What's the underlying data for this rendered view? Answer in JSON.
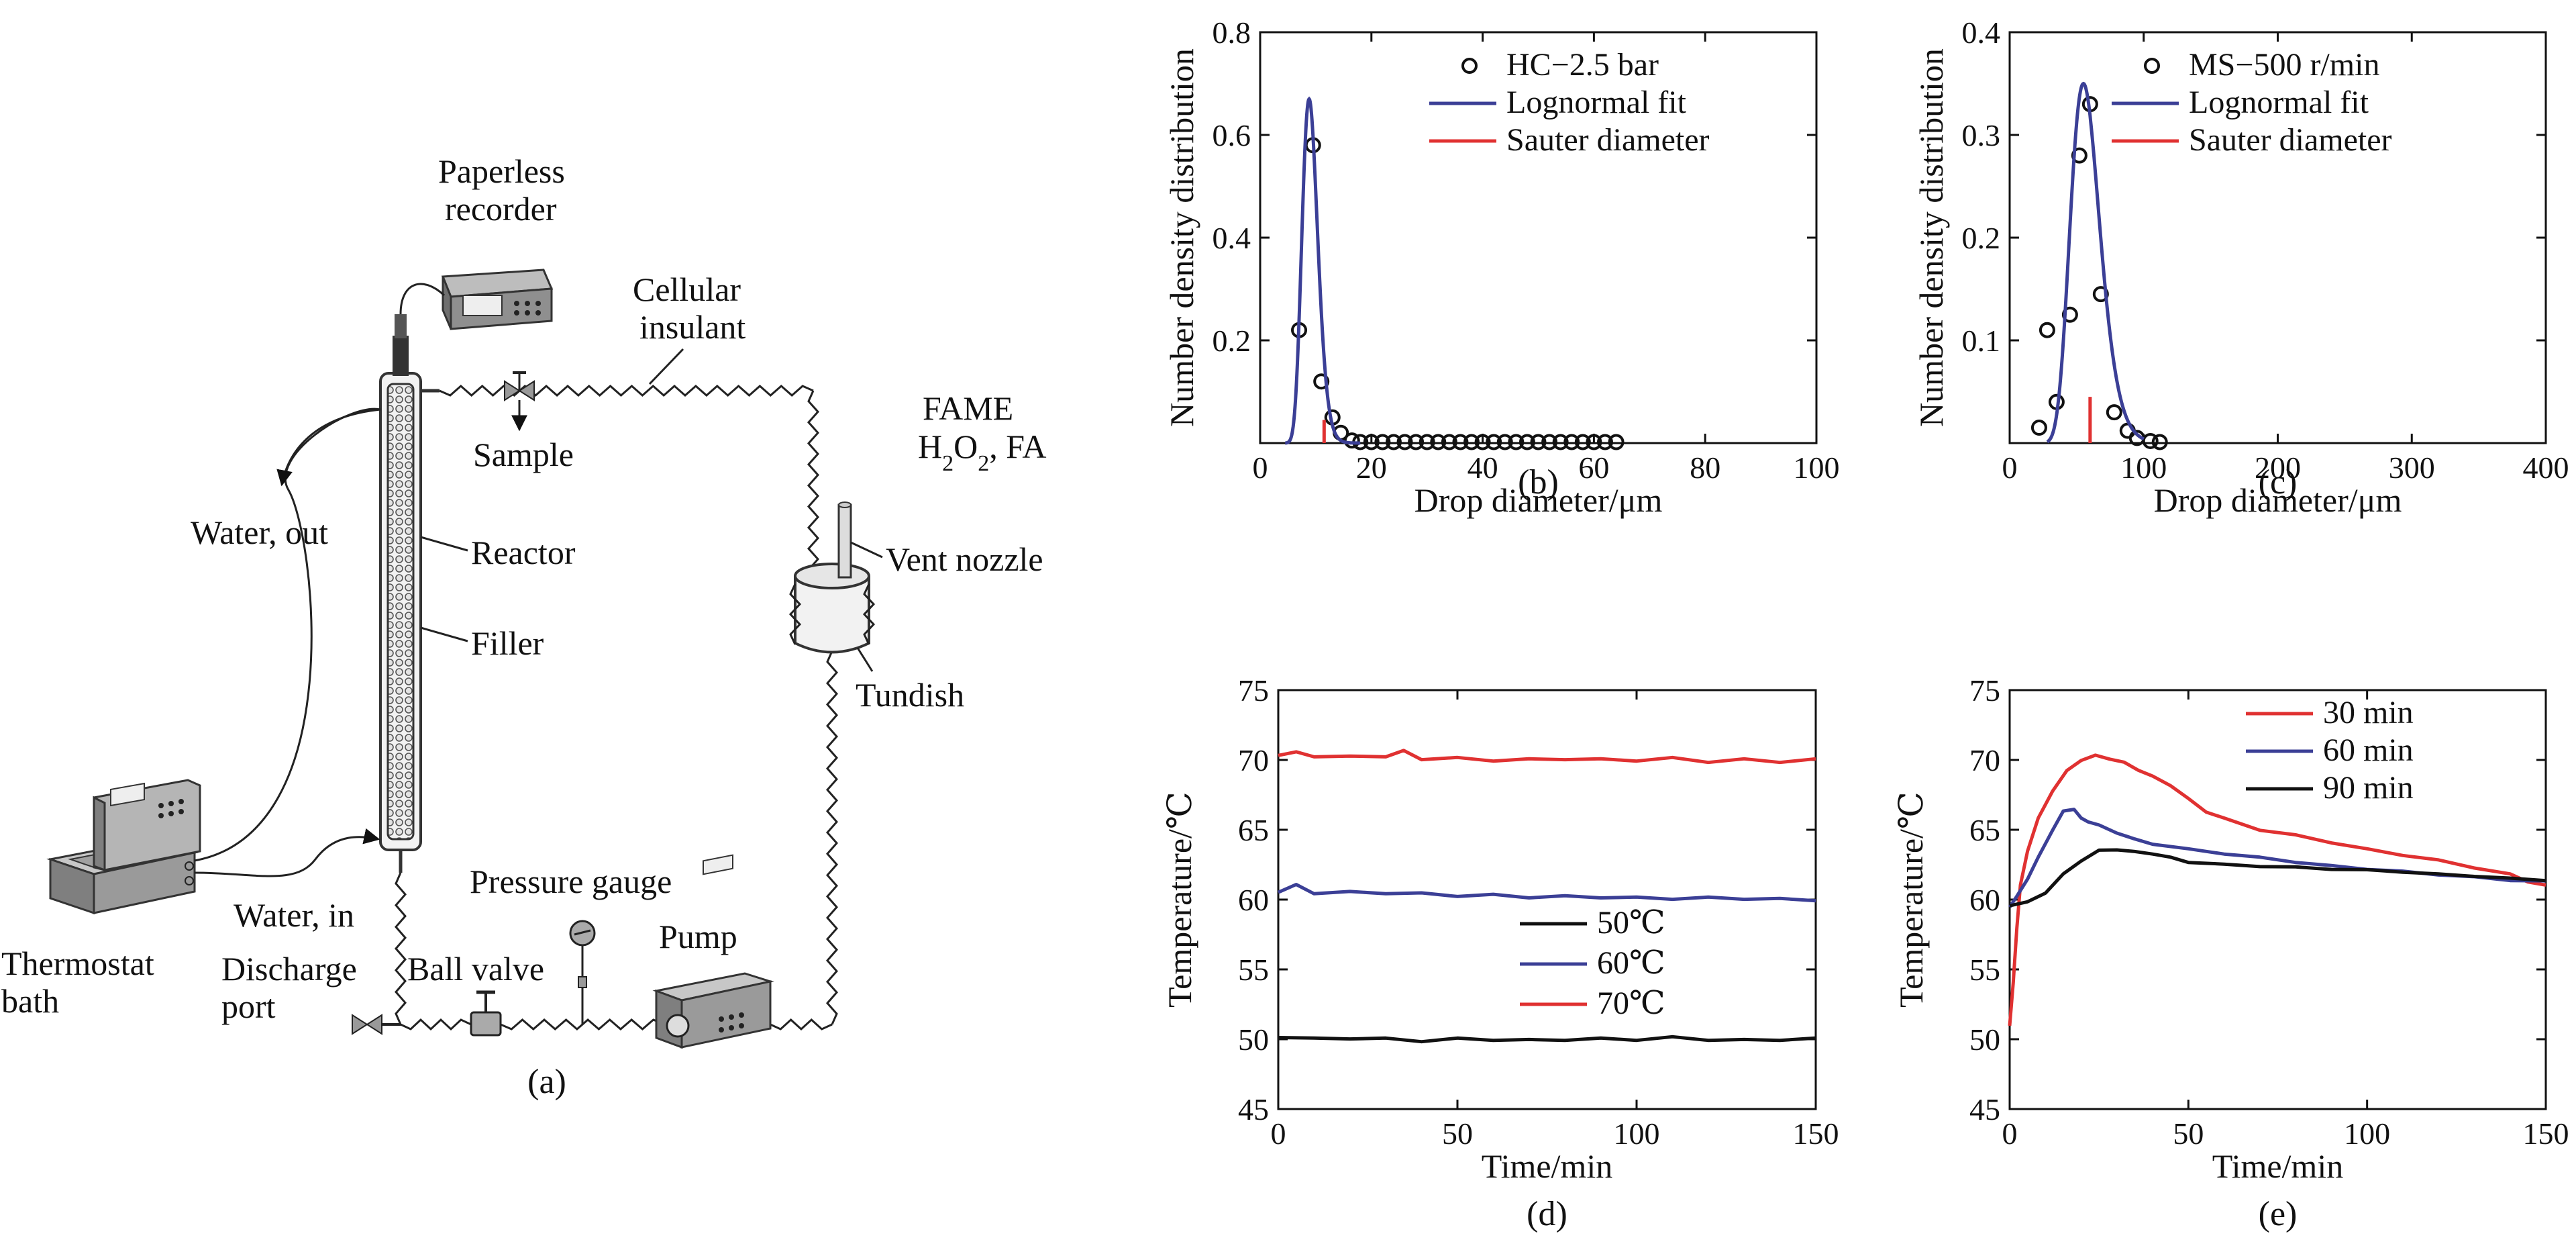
{
  "colors": {
    "red": "#e03131",
    "blue": "#3b3f96",
    "black": "#111111",
    "device": "#8a8a8a"
  },
  "diagram": {
    "caption": "(a)",
    "labels": {
      "paperless": "Paperless",
      "recorder": "recorder",
      "cellular": "Cellular",
      "insulant": "insulant",
      "sample": "Sample",
      "fame": "FAME",
      "h2o2_h": "H",
      "h2o2_2a": "2",
      "h2o2_o": "O",
      "h2o2_2b": "2",
      "h2o2_fa": ", FA",
      "water_out": "Water, out",
      "reactor": "Reactor",
      "vent_nozzle": "Vent nozzle",
      "filler": "Filler",
      "tundish": "Tundish",
      "pressure_gauge": "Pressure gauge",
      "water_in": "Water, in",
      "pump": "Pump",
      "thermostat": "Thermostat",
      "bath": "bath",
      "discharge": "Discharge",
      "port": "port",
      "ball_valve": "Ball valve"
    }
  },
  "chart_data": [
    {
      "id": "b",
      "type": "scatter",
      "caption": "(b)",
      "xlabel": "Drop diameter/μm",
      "ylabel": "Number density distribution",
      "xlim": [
        0,
        100
      ],
      "ylim": [
        0,
        0.8
      ],
      "xticks": [
        0,
        20,
        40,
        60,
        80,
        100
      ],
      "yticks": [
        0.2,
        0.4,
        0.6,
        0.8
      ],
      "legend_position": "top-right",
      "series": [
        {
          "name": "HC−2.5 bar",
          "kind": "points",
          "x": [
            7,
            9.5,
            11,
            13,
            14.5,
            16.5,
            18,
            20,
            22,
            24,
            26,
            28,
            30,
            32,
            34,
            36,
            38,
            40,
            42,
            44,
            46,
            48,
            50,
            52,
            54,
            56,
            58,
            60,
            62,
            64
          ],
          "y": [
            0.22,
            0.58,
            0.12,
            0.05,
            0.02,
            0.005,
            0.002,
            0.002,
            0.002,
            0.002,
            0.002,
            0.002,
            0.002,
            0.002,
            0.002,
            0.002,
            0.002,
            0.002,
            0.002,
            0.002,
            0.002,
            0.002,
            0.002,
            0.002,
            0.002,
            0.002,
            0.002,
            0.002,
            0.002,
            0.002
          ]
        },
        {
          "name": "Lognormal fit",
          "kind": "lognormal",
          "peak_x": 8.8,
          "peak_y": 0.67,
          "sigma": 0.16,
          "x_range": [
            4.5,
            18
          ]
        },
        {
          "name": "Sauter diameter",
          "kind": "vline",
          "x": 11.5,
          "y": 0.045
        }
      ]
    },
    {
      "id": "c",
      "type": "scatter",
      "caption": "(c)",
      "xlabel": "Drop diameter/μm",
      "ylabel": "Number density distribution",
      "xlim": [
        0,
        400
      ],
      "ylim": [
        0,
        0.4
      ],
      "xticks": [
        0,
        100,
        200,
        300,
        400
      ],
      "yticks": [
        0.1,
        0.2,
        0.3,
        0.4
      ],
      "legend_position": "top-right",
      "series": [
        {
          "name": "MS−500 r/min",
          "kind": "points",
          "x": [
            22,
            28,
            35,
            45,
            52,
            60,
            68,
            78,
            88,
            95,
            105,
            112
          ],
          "y": [
            0.015,
            0.11,
            0.04,
            0.125,
            0.28,
            0.33,
            0.145,
            0.03,
            0.012,
            0.005,
            0.002,
            0.001
          ]
        },
        {
          "name": "Lognormal fit",
          "kind": "lognormal",
          "peak_x": 55,
          "peak_y": 0.35,
          "sigma": 0.2,
          "x_range": [
            28,
            100
          ]
        },
        {
          "name": "Sauter diameter",
          "kind": "vline",
          "x": 60,
          "y": 0.045
        }
      ]
    },
    {
      "id": "d",
      "type": "line",
      "caption": "(d)",
      "xlabel": "Time/min",
      "ylabel": "Temperature/℃",
      "xlim": [
        0,
        150
      ],
      "ylim": [
        45,
        75
      ],
      "xticks": [
        0,
        50,
        100,
        150
      ],
      "yticks": [
        45,
        50,
        55,
        60,
        65,
        70,
        75
      ],
      "legend_position": "bottom-right",
      "series": [
        {
          "name": "50℃",
          "color": "#111111",
          "x": [
            0,
            10,
            20,
            30,
            40,
            50,
            60,
            70,
            80,
            90,
            100,
            110,
            120,
            130,
            140,
            150
          ],
          "y": [
            50.2,
            50.0,
            50.1,
            50.0,
            49.9,
            50.0,
            50.0,
            49.9,
            50.0,
            50.0,
            50.0,
            50.1,
            50.0,
            49.9,
            50.0,
            50.0
          ]
        },
        {
          "name": "60℃",
          "color": "#3b3f96",
          "x": [
            0,
            5,
            10,
            20,
            30,
            40,
            50,
            60,
            70,
            80,
            90,
            100,
            110,
            120,
            130,
            140,
            150
          ],
          "y": [
            60.6,
            61.0,
            60.5,
            60.5,
            60.5,
            60.4,
            60.3,
            60.3,
            60.2,
            60.2,
            60.2,
            60.1,
            60.1,
            60.1,
            60.1,
            60.0,
            60.0
          ]
        },
        {
          "name": "70℃",
          "color": "#e03131",
          "x": [
            0,
            5,
            10,
            20,
            30,
            35,
            40,
            50,
            60,
            70,
            80,
            90,
            100,
            110,
            120,
            130,
            140,
            150
          ],
          "y": [
            70.4,
            70.5,
            70.3,
            70.2,
            70.3,
            70.6,
            70.1,
            70.1,
            70.0,
            70.0,
            70.1,
            70.0,
            70.0,
            70.1,
            69.9,
            70.0,
            69.9,
            70.0
          ]
        }
      ]
    },
    {
      "id": "e",
      "type": "line",
      "caption": "(e)",
      "xlabel": "Time/min",
      "ylabel": "Temperature/℃",
      "xlim": [
        0,
        150
      ],
      "ylim": [
        45,
        75
      ],
      "xticks": [
        0,
        50,
        100,
        150
      ],
      "yticks": [
        45,
        50,
        55,
        60,
        65,
        70,
        75
      ],
      "legend_position": "top-right",
      "series": [
        {
          "name": "30 min",
          "color": "#e03131",
          "x": [
            0,
            1,
            2,
            3,
            5,
            8,
            12,
            16,
            20,
            24,
            28,
            32,
            36,
            40,
            45,
            50,
            55,
            60,
            70,
            80,
            90,
            100,
            110,
            120,
            130,
            140,
            145,
            150
          ],
          "y": [
            51,
            54,
            58,
            61,
            63.5,
            65.8,
            67.8,
            69.2,
            70.0,
            70.3,
            70.1,
            69.8,
            69.3,
            68.8,
            68.2,
            67.2,
            66.3,
            65.8,
            65.0,
            64.6,
            64.1,
            63.6,
            63.2,
            62.8,
            62.3,
            61.8,
            61.3,
            61.0
          ]
        },
        {
          "name": "60 min",
          "color": "#3b3f96",
          "x": [
            0,
            2,
            5,
            8,
            12,
            15,
            18,
            20,
            22,
            25,
            30,
            35,
            40,
            50,
            60,
            70,
            80,
            90,
            100,
            110,
            120,
            130,
            140,
            150
          ],
          "y": [
            59.5,
            60.2,
            61.5,
            63.0,
            65.0,
            66.3,
            66.5,
            65.8,
            65.6,
            65.3,
            64.8,
            64.3,
            64.0,
            63.6,
            63.3,
            63.0,
            62.7,
            62.4,
            62.2,
            62.0,
            61.8,
            61.6,
            61.4,
            61.3
          ]
        },
        {
          "name": "90 min",
          "color": "#111111",
          "x": [
            0,
            5,
            10,
            15,
            20,
            25,
            30,
            35,
            40,
            45,
            50,
            60,
            70,
            80,
            90,
            100,
            110,
            120,
            130,
            140,
            150
          ],
          "y": [
            59.6,
            59.8,
            60.5,
            61.8,
            62.8,
            63.5,
            63.6,
            63.4,
            63.3,
            63.0,
            62.7,
            62.5,
            62.4,
            62.3,
            62.2,
            62.1,
            62.0,
            61.8,
            61.7,
            61.5,
            61.4
          ]
        }
      ]
    }
  ]
}
